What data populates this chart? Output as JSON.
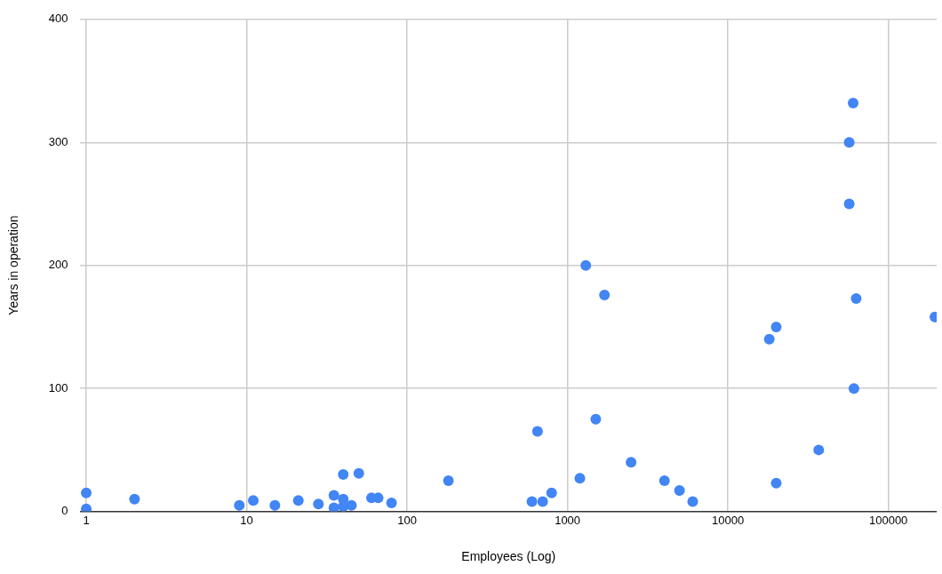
{
  "chart_data": {
    "type": "scatter",
    "xlabel": "Employees (Log)",
    "ylabel": "Years in operation",
    "log": "x",
    "grid": true,
    "legend": false,
    "marker": "circle",
    "xlim": [
      0.92,
      200000
    ],
    "xticks": [
      1,
      10,
      100,
      1000,
      10000,
      100000
    ],
    "ylim": [
      0,
      400
    ],
    "yticks": [
      0,
      100,
      200,
      300,
      400
    ],
    "series": [
      {
        "color": "#4285f4",
        "x": [
          1,
          1,
          2,
          9,
          11,
          15,
          21,
          28,
          35,
          35,
          40,
          40,
          40,
          45,
          50,
          60,
          66,
          80,
          181,
          600,
          700,
          650,
          796,
          1194,
          1300,
          1500,
          1700,
          2490,
          4020,
          4990,
          6030,
          18100,
          20000,
          20000,
          36800,
          60300,
          57000,
          57000,
          63000,
          61000,
          195000
        ],
        "values": [
          15,
          2,
          10,
          5,
          9,
          5,
          9,
          6,
          13,
          3,
          30,
          10,
          4,
          5,
          31,
          11,
          11,
          7,
          25,
          8,
          8,
          65,
          15,
          27,
          200,
          75,
          176,
          40,
          25,
          17,
          8,
          140,
          150,
          23,
          50,
          332,
          300,
          250,
          173,
          100,
          158
        ]
      }
    ]
  }
}
